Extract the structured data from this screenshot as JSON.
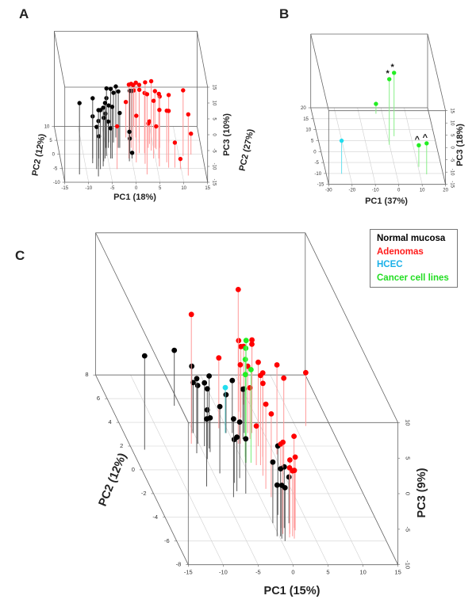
{
  "panels": {
    "A": "A",
    "B": "B",
    "C": "C"
  },
  "legend": [
    {
      "label": "Normal mucosa",
      "color": "#000000"
    },
    {
      "label": "Adenomas",
      "color": "#ff1a1a"
    },
    {
      "label": "HCEC",
      "color": "#1ab0e8"
    },
    {
      "label": "Cancer cell lines",
      "color": "#22dd22"
    }
  ],
  "chart_data": [
    {
      "panel": "A",
      "type": "scatter",
      "projection": "3d",
      "xlabel": "PC1 (18%)",
      "ylabel": "PC2 (12%)",
      "zlabel": "PC3 (10%)",
      "xlim": [
        -15,
        15
      ],
      "ylim": [
        -10,
        10
      ],
      "zlim": [
        -15,
        15
      ],
      "xticks": [
        "-15",
        "-10",
        "-5",
        "0",
        "5",
        "10",
        "15"
      ],
      "yticks": [
        "-10",
        "-5",
        "0",
        "5",
        "10"
      ],
      "zticks": [
        "-15",
        "-10",
        "-5",
        "0",
        "5",
        "10",
        "15"
      ],
      "grid": true,
      "series": [
        {
          "group": "Normal mucosa",
          "color": "#000000",
          "stem_color": "#555555",
          "points": [
            [
              -11.6,
              -7.2,
              7.5
            ],
            [
              -8.4,
              -3.2,
              5.5
            ],
            [
              -8.2,
              -1.5,
              -1.7
            ],
            [
              -7.7,
              -7.9,
              5.9
            ],
            [
              -7.0,
              -5.3,
              3.6
            ],
            [
              -6.3,
              -4.3,
              3.5
            ],
            [
              -5.6,
              -1.5,
              2.5
            ],
            [
              -5.2,
              -0.6,
              6.3
            ],
            [
              -4.9,
              2.3,
              0.7
            ],
            [
              -5.1,
              2.3,
              -4.2
            ],
            [
              -6.0,
              -2.5,
              -1.3
            ],
            [
              -7.3,
              -4.3,
              -0.7
            ],
            [
              -7.8,
              -5.3,
              -1.7
            ],
            [
              -6.9,
              -1.5,
              -8.0
            ],
            [
              -4.5,
              2.3,
              -6.7
            ],
            [
              -4.4,
              -1.5,
              -5.5
            ],
            [
              -4.2,
              4.2,
              -3.3
            ],
            [
              -4.1,
              -1.5,
              1.3
            ],
            [
              -4.0,
              2.3,
              3.6
            ],
            [
              -3.2,
              4.2,
              0.7
            ],
            [
              -2.5,
              6.0,
              1.1
            ],
            [
              -2.4,
              2.3,
              2.8
            ],
            [
              -2.1,
              2.3,
              -4.0
            ],
            [
              0.0,
              2.3,
              3.0
            ],
            [
              0.8,
              6.0,
              -0.3
            ],
            [
              -0.6,
              -2.5,
              -5.7
            ],
            [
              -0.2,
              0.4,
              -10.4
            ],
            [
              0.1,
              -1.5,
              -13.2
            ]
          ]
        },
        {
          "group": "Adenomas",
          "color": "#ff0000",
          "stem_color": "#ff9a9a",
          "points": [
            [
              -3.5,
              -5.3,
              -1.5
            ],
            [
              -0.4,
              6.0,
              -3.8
            ],
            [
              -0.6,
              -1.5,
              8.3
            ],
            [
              0.3,
              2.3,
              5.2
            ],
            [
              0.6,
              1.3,
              5.7
            ],
            [
              1.7,
              6.0,
              2.3
            ],
            [
              1.7,
              9.8,
              -3.5
            ],
            [
              2.2,
              4.2,
              3.2
            ],
            [
              1.8,
              0.4,
              5.0
            ],
            [
              0.8,
              -2.9,
              -0.3
            ],
            [
              2.6,
              -3.4,
              10.7
            ],
            [
              2.9,
              0.4,
              4.0
            ],
            [
              2.6,
              -7.2,
              10.3
            ],
            [
              4.4,
              1.3,
              6.9
            ],
            [
              4.6,
              -1.5,
              3.2
            ],
            [
              5.3,
              2.3,
              2.9
            ],
            [
              5.7,
              -1.5,
              5.4
            ],
            [
              6.3,
              2.3,
              1.2
            ],
            [
              5.5,
              -4.3,
              2.8
            ],
            [
              3.9,
              2.3,
              -7.3
            ],
            [
              4.3,
              3.7,
              -7.9
            ],
            [
              5.5,
              1.8,
              -7.8
            ],
            [
              7.2,
              -2.9,
              1.3
            ],
            [
              7.4,
              -4.8,
              2.9
            ],
            [
              8.4,
              4.2,
              0.0
            ],
            [
              8.7,
              -4.8,
              -7.1
            ],
            [
              9.8,
              -5.3,
              -11.8
            ],
            [
              10.9,
              -0.6,
              5.7
            ],
            [
              11.2,
              -7.6,
              4.3
            ],
            [
              12.6,
              -0.1,
              -8.4
            ]
          ]
        }
      ]
    },
    {
      "panel": "B",
      "type": "scatter",
      "projection": "3d",
      "xlabel": "PC1 (37%)",
      "ylabel": "PC2 (27%)",
      "zlabel": "PC3 (18%)",
      "xlim": [
        -30,
        20
      ],
      "ylim": [
        -15,
        20
      ],
      "zlim": [
        -15,
        15
      ],
      "xticks": [
        "-30",
        "-20",
        "-10",
        "0",
        "10",
        "20"
      ],
      "yticks": [
        "-15",
        "-10",
        "-5",
        "0",
        "5",
        "10",
        "15",
        "20"
      ],
      "zticks": [
        "-15",
        "-10",
        "-5",
        "0",
        "5",
        "10",
        "15"
      ],
      "grid": true,
      "series": [
        {
          "group": "HCEC",
          "color": "#22ddee",
          "stem_color": "#66e0ee",
          "points": [
            [
              -23.4,
              -10.2,
              -1.5
            ]
          ],
          "annotations": [
            ""
          ]
        },
        {
          "group": "Cancer cell lines",
          "color": "#22ee22",
          "stem_color": "#88ee88",
          "points": [
            [
              -2.7,
              17.3,
              -11.0
            ],
            [
              -0.1,
              3.1,
              11.7
            ],
            [
              2.8,
              7.0,
              10.8
            ],
            [
              10.3,
              -7.0,
              -6.2
            ],
            [
              12.9,
              -10.4,
              -2.4
            ]
          ],
          "annotations": [
            "",
            "*",
            "*",
            "^",
            "^"
          ]
        }
      ]
    },
    {
      "panel": "C",
      "type": "scatter",
      "projection": "3d",
      "xlabel": "PC1 (15%)",
      "ylabel": "PC2 (12%)",
      "zlabel": "PC3 (9%)",
      "xlim": [
        -15,
        15
      ],
      "ylim": [
        -8,
        8
      ],
      "zlim": [
        -10,
        10
      ],
      "xticks": [
        "-15",
        "-10",
        "-5",
        "0",
        "5",
        "10",
        "15"
      ],
      "yticks": [
        "-8",
        "-6",
        "-4",
        "-2",
        "0",
        "2",
        "4",
        "6",
        "8"
      ],
      "zticks": [
        "-10",
        "-5",
        "0",
        "5",
        "10"
      ],
      "grid": true,
      "legend_position": "top-right",
      "series": [
        {
          "group": "Normal mucosa",
          "color": "#000000",
          "stem_color": "#5a5a5a",
          "points": [
            [
              -13.2,
              1.7,
              3.2
            ],
            [
              -5.9,
              5.4,
              -2.2
            ],
            [
              -5.3,
              3.1,
              -0.6
            ],
            [
              -5.1,
              3.1,
              -2.9
            ],
            [
              -6.0,
              1.4,
              0.5
            ],
            [
              -5.2,
              2.2,
              -1.8
            ],
            [
              -4.4,
              2.0,
              -1.1
            ],
            [
              -4.9,
              0.9,
              -0.1
            ],
            [
              -3.9,
              1.8,
              0.2
            ],
            [
              -4.0,
              2.0,
              -4.9
            ],
            [
              -6.9,
              -1.4,
              -0.5
            ],
            [
              -4.0,
              1.5,
              -5.2
            ],
            [
              -4.1,
              -0.3,
              -0.6
            ],
            [
              -0.4,
              3.1,
              -4.6
            ],
            [
              0.5,
              3.1,
              -2.6
            ],
            [
              -3.8,
              -2.3,
              1.0
            ],
            [
              -1.6,
              -0.7,
              -2.1
            ],
            [
              -2.7,
              -1.1,
              -3.9
            ],
            [
              -2.9,
              -1.8,
              -2.4
            ],
            [
              1.6,
              2.6,
              -3.0
            ],
            [
              2.2,
              3.1,
              -3.8
            ],
            [
              -1.8,
              -2.0,
              -2.3
            ],
            [
              1.3,
              -3.8,
              -0.3
            ],
            [
              0.0,
              -4.5,
              -1.4
            ],
            [
              0.2,
              -5.6,
              -0.5
            ],
            [
              1.3,
              -4.9,
              -1.4
            ],
            [
              -0.3,
              -5.6,
              -2.8
            ],
            [
              0.2,
              -5.8,
              -2.5
            ],
            [
              0.5,
              -6.0,
              -2.5
            ],
            [
              2.3,
              -4.5,
              -3.5
            ]
          ]
        },
        {
          "group": "Adenomas",
          "color": "#ff0000",
          "stem_color": "#ff9a9a",
          "points": [
            [
              -6.1,
              2.2,
              8.2
            ],
            [
              0.6,
              2.2,
              11.7
            ],
            [
              -1.1,
              3.5,
              -0.1
            ],
            [
              2.9,
              4.9,
              0.0
            ],
            [
              2.8,
              4.4,
              0.0
            ],
            [
              4.1,
              5.5,
              -1.8
            ],
            [
              5.3,
              5.5,
              -0.9
            ],
            [
              3.3,
              3.1,
              2.5
            ],
            [
              0.9,
              2.2,
              1.1
            ],
            [
              2.7,
              3.1,
              -0.6
            ],
            [
              3.3,
              2.0,
              1.8
            ],
            [
              2.3,
              0.4,
              2.6
            ],
            [
              3.2,
              1.1,
              1.8
            ],
            [
              1.9,
              -0.5,
              3.0
            ],
            [
              5.4,
              1.3,
              2.6
            ],
            [
              5.3,
              0.0,
              2.9
            ],
            [
              2.6,
              2.6,
              -2.8
            ],
            [
              1.4,
              -1.6,
              1.9
            ],
            [
              1.6,
              -2.3,
              1.7
            ],
            [
              1.7,
              0.4,
              -4.5
            ],
            [
              11.5,
              3.7,
              -2.5
            ],
            [
              0.8,
              -4.9,
              1.8
            ],
            [
              0.7,
              -5.4,
              2.9
            ],
            [
              2.7,
              -4.9,
              2.9
            ],
            [
              1.7,
              -5.4,
              0.4
            ],
            [
              2.7,
              -5.1,
              0.3
            ],
            [
              1.4,
              -5.7,
              -0.2
            ],
            [
              1.9,
              -5.6,
              -0.8
            ],
            [
              2.0,
              -5.8,
              -0.4
            ]
          ]
        },
        {
          "group": "HCEC",
          "color": "#22ddee",
          "stem_color": "#55cccc",
          "points": [
            [
              -0.5,
              3.1,
              -3.6
            ]
          ]
        },
        {
          "group": "Cancer cell lines",
          "color": "#22ee22",
          "stem_color": "#77ee77",
          "points": [
            [
              0.4,
              0.6,
              7.2
            ],
            [
              1.1,
              1.5,
              4.6
            ],
            [
              0.7,
              1.1,
              3.7
            ],
            [
              0.3,
              0.6,
              2.4
            ],
            [
              1.1,
              0.6,
              3.1
            ]
          ]
        }
      ]
    }
  ]
}
